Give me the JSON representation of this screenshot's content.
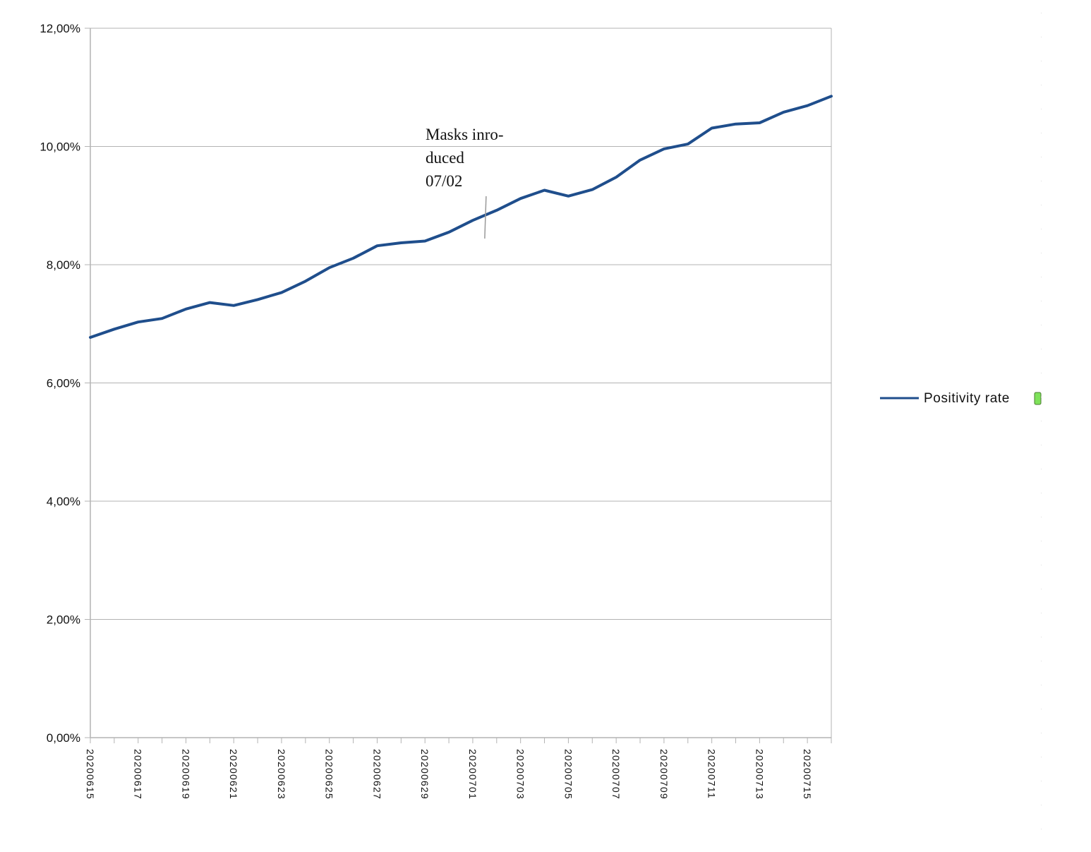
{
  "chart_data": {
    "type": "line",
    "title": "",
    "xlabel": "",
    "ylabel": "",
    "ylim": [
      0,
      0.12
    ],
    "y_ticks": [
      "0,00%",
      "2,00%",
      "4,00%",
      "6,00%",
      "8,00%",
      "10,00%",
      "12,00%"
    ],
    "y_tick_values": [
      0,
      0.02,
      0.04,
      0.06,
      0.08,
      0.1,
      0.12
    ],
    "grid": "horizontal",
    "legend_position": "right",
    "x_tick_labels": [
      "20200615",
      "20200617",
      "20200619",
      "20200621",
      "20200623",
      "20200625",
      "20200627",
      "20200629",
      "20200701",
      "20200703",
      "20200705",
      "20200707",
      "20200709",
      "20200711",
      "20200713",
      "20200715"
    ],
    "x": [
      "20200615",
      "20200616",
      "20200617",
      "20200618",
      "20200619",
      "20200620",
      "20200621",
      "20200622",
      "20200623",
      "20200624",
      "20200625",
      "20200626",
      "20200627",
      "20200628",
      "20200629",
      "20200630",
      "20200701",
      "20200702",
      "20200703",
      "20200704",
      "20200705",
      "20200706",
      "20200707",
      "20200708",
      "20200709",
      "20200710",
      "20200711",
      "20200712",
      "20200713",
      "20200714",
      "20200715",
      "20200716"
    ],
    "series": [
      {
        "name": "Positivity rate",
        "color": "#1f4e8c",
        "values": [
          0.0677,
          0.0691,
          0.0703,
          0.0709,
          0.0725,
          0.0736,
          0.0731,
          0.0741,
          0.0753,
          0.0772,
          0.0795,
          0.0811,
          0.0832,
          0.0837,
          0.084,
          0.0855,
          0.0875,
          0.0892,
          0.0912,
          0.0926,
          0.0916,
          0.0927,
          0.0948,
          0.0977,
          0.0996,
          0.1004,
          0.1031,
          0.1038,
          0.104,
          0.1058,
          0.1069,
          0.1085
        ]
      }
    ],
    "annotation": {
      "lines": [
        "Masks inro-",
        "duced",
        "07/02"
      ],
      "marker_at": "20200702"
    },
    "legend_marker_color": "#7ee25a"
  }
}
